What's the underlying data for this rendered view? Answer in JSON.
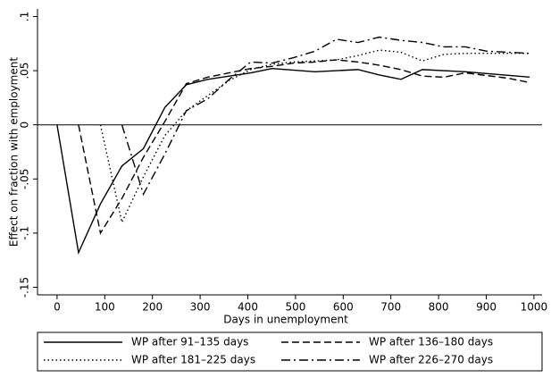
{
  "chart_data": {
    "type": "line",
    "xlabel": "Days in unemployment",
    "ylabel": "Effect on fraction with employment",
    "xlim": [
      -41,
      1017
    ],
    "ylim": [
      -0.157,
      0.107
    ],
    "xticks": [
      0,
      100,
      200,
      300,
      400,
      500,
      600,
      700,
      800,
      900,
      1000
    ],
    "yticks": [
      {
        "value": -0.15,
        "label": "-.15"
      },
      {
        "value": -0.1,
        "label": "-.1"
      },
      {
        "value": -0.05,
        "label": "-.05"
      },
      0,
      {
        "value": 0.05,
        "label": ".05"
      },
      {
        "value": 0.1,
        "label": ".1"
      }
    ],
    "zero_line": true,
    "series": [
      {
        "name": "WP after 91–135 days",
        "color": "#000000",
        "dash": "solid",
        "x": [
          0,
          45,
          91,
          136,
          181,
          226,
          271,
          316,
          361,
          406,
          451,
          541,
          631,
          676,
          721,
          766,
          856,
          991
        ],
        "values": [
          0,
          -0.118,
          -0.073,
          -0.038,
          -0.022,
          0.016,
          0.037,
          0.042,
          0.045,
          0.048,
          0.052,
          0.049,
          0.051,
          0.046,
          0.042,
          0.051,
          0.049,
          0.044
        ]
      },
      {
        "name": "WP after 136–180 days",
        "color": "#000000",
        "dash": "dashed",
        "x": [
          45,
          91,
          136,
          181,
          226,
          271,
          316,
          361,
          406,
          451,
          496,
          541,
          586,
          631,
          676,
          721,
          766,
          811,
          856,
          946,
          991
        ],
        "values": [
          0,
          -0.1,
          -0.068,
          -0.03,
          0.003,
          0.038,
          0.044,
          0.048,
          0.052,
          0.054,
          0.057,
          0.058,
          0.06,
          0.058,
          0.055,
          0.051,
          0.045,
          0.044,
          0.048,
          0.043,
          0.039
        ]
      },
      {
        "name": "WP after 181–225 days",
        "color": "#000000",
        "dash": "dotted",
        "x": [
          91,
          136,
          181,
          226,
          271,
          316,
          361,
          406,
          451,
          496,
          541,
          586,
          631,
          676,
          721,
          766,
          811,
          856,
          991
        ],
        "values": [
          0,
          -0.09,
          -0.048,
          -0.01,
          0.013,
          0.027,
          0.041,
          0.051,
          0.056,
          0.058,
          0.059,
          0.06,
          0.064,
          0.069,
          0.067,
          0.059,
          0.065,
          0.066,
          0.066
        ]
      },
      {
        "name": "WP after 226–270 days",
        "color": "#000000",
        "dash": "dashdot",
        "x": [
          136,
          181,
          226,
          271,
          316,
          361,
          406,
          451,
          496,
          541,
          586,
          631,
          676,
          721,
          766,
          811,
          856,
          901,
          991
        ],
        "values": [
          0,
          -0.064,
          -0.027,
          0.013,
          0.024,
          0.042,
          0.058,
          0.057,
          0.062,
          0.068,
          0.079,
          0.076,
          0.081,
          0.078,
          0.076,
          0.072,
          0.072,
          0.068,
          0.066
        ]
      }
    ]
  }
}
